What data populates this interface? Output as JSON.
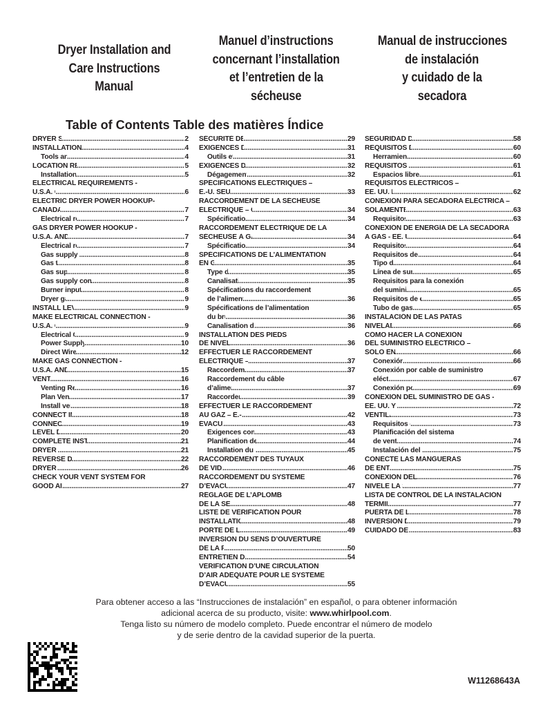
{
  "titles": {
    "en": [
      "Dryer Installation and",
      "Care Instructions",
      "Manual"
    ],
    "fr": [
      "Manuel d’instructions",
      "concernant l’installation",
      "et l’entretien de la",
      "sécheuse"
    ],
    "es": [
      "Manual de instrucciones",
      "de instalación",
      "y cuidado de la",
      "secadora"
    ]
  },
  "toc_title": "Table of Contents Table des matières Índice",
  "columns": [
    [
      {
        "t": "DRYER SAFETY",
        "p": "2"
      },
      {
        "t": "INSTALLATION REQUIREMENTS",
        "p": "4"
      },
      {
        "t": "Tools and parts",
        "p": "4",
        "sub": true
      },
      {
        "t": "LOCATION REQUIREMENTS",
        "p": "5"
      },
      {
        "t": "Installation clearances",
        "p": "5",
        "sub": true
      },
      {
        "t": "ELECTRICAL REQUIREMENTS -"
      },
      {
        "t": "U.S.A. ONLY",
        "p": "6"
      },
      {
        "t": "ELECTRIC DRYER POWER HOOKUP-"
      },
      {
        "t": "CANADA ONLY",
        "p": "7"
      },
      {
        "t": "Electrical requirements",
        "p": "7",
        "sub": true
      },
      {
        "t": "GAS DRYER POWER HOOKUP -"
      },
      {
        "t": "U.S.A. AND CANADA",
        "p": "7"
      },
      {
        "t": "Electrical requirements",
        "p": "7",
        "sub": true
      },
      {
        "t": "Gas supply requirements",
        "p": "8",
        "sub": true
      },
      {
        "t": "Gas type",
        "p": "8",
        "sub": true
      },
      {
        "t": "Gas supply line",
        "p": "8",
        "sub": true
      },
      {
        "t": "Gas supply connection requirements",
        "p": "8",
        "sub": true
      },
      {
        "t": "Burner input requirements",
        "p": "8",
        "sub": true
      },
      {
        "t": "Dryer gas pipe",
        "p": "9",
        "sub": true
      },
      {
        "t": "INSTALL LEVELING LEGS",
        "p": "9"
      },
      {
        "t": "MAKE ELECTRICAL CONNECTION -"
      },
      {
        "t": "U.S.A. ONLY",
        "p": "9"
      },
      {
        "t": "Electrical Connection",
        "p": "9",
        "sub": true
      },
      {
        "t": "Power Supply Cord Connection",
        "p": "10",
        "sub": true
      },
      {
        "t": "Direct Wire Connection",
        "p": "12",
        "sub": true
      },
      {
        "t": "MAKE GAS CONNECTION -"
      },
      {
        "t": "U.S.A. AND CANADA",
        "p": "15"
      },
      {
        "t": "VENTING",
        "p": "16"
      },
      {
        "t": "Venting Requirements",
        "p": "16",
        "sub": true
      },
      {
        "t": "Plan Vent System",
        "p": "17",
        "sub": true
      },
      {
        "t": "Install vent system",
        "p": "18",
        "sub": true
      },
      {
        "t": "CONNECT INLET HOSES",
        "p": "18"
      },
      {
        "t": "CONNECT VENT",
        "p": "19"
      },
      {
        "t": "LEVEL DRYER",
        "p": "20"
      },
      {
        "t": "COMPLETE INSTALLATION CHECKLIST",
        "p": "21"
      },
      {
        "t": "DRYER DOOR",
        "p": "21"
      },
      {
        "t": "REVERSE DOOR SWING",
        "p": "22"
      },
      {
        "t": "DRYER CARE",
        "p": "26"
      },
      {
        "t": "CHECK YOUR VENT SYSTEM FOR"
      },
      {
        "t": "GOOD AIR FLOW",
        "p": "27"
      }
    ],
    [
      {
        "t": "SÉCURITÉ DE LA SÉCHEUSE",
        "p": "29"
      },
      {
        "t": "EXIGENCES D’INSTALLATION",
        "p": "31"
      },
      {
        "t": "Outils et pièces",
        "p": "31",
        "sub": true
      },
      {
        "t": "EXIGENCES D’EMPLACEMENT",
        "p": "32"
      },
      {
        "t": "Dégagements d’installation",
        "p": "32",
        "sub": true
      },
      {
        "t": "SPÉCIFICATIONS ÉLECTRIQUES –"
      },
      {
        "t": "É.-U. SEULEMENT",
        "p": "33"
      },
      {
        "t": "RACCORDEMENT DE LA SÉCHEUSE"
      },
      {
        "t": "ÉLECTRIQUE – CANADA SEULEMENT",
        "p": "34"
      },
      {
        "t": "Spécifications électriques",
        "p": "34",
        "sub": true
      },
      {
        "t": "RACCORDEMENT ÉLECTRIQUE DE LA"
      },
      {
        "t": "SÉCHEUSE À GAZ – É.-U. ET CANADA",
        "p": "34"
      },
      {
        "t": "Spécifications électriques",
        "p": "34",
        "sub": true
      },
      {
        "t": "SPÉCIFICATIONS DE L’ALIMENTATION"
      },
      {
        "t": "EN GAZ",
        "p": "35"
      },
      {
        "t": "Type de gaz",
        "p": "35",
        "sub": true
      },
      {
        "t": "Canalisation de gaz",
        "p": "35",
        "sub": true
      },
      {
        "t": "Spécifications du raccordement",
        "sub": true
      },
      {
        "t": "de l’alimentation en gaz",
        "p": "36",
        "sub": true
      },
      {
        "t": "Spécifications de l’alimentation",
        "sub": true
      },
      {
        "t": "du brûleur",
        "p": "36",
        "sub": true
      },
      {
        "t": "Canalisation de gaz de la sécheuse",
        "p": "36",
        "sub": true
      },
      {
        "t": "INSTALLATION DES PIEDS"
      },
      {
        "t": "DE NIVELLEMENT",
        "p": "36"
      },
      {
        "t": "EFFECTUER LE RACCORDEMENT"
      },
      {
        "t": "ÉLECTRIQUE – É.-U. SEULEMENT",
        "p": "37"
      },
      {
        "t": "Raccordement électrique",
        "p": "37",
        "sub": true
      },
      {
        "t": "Raccordement du câble",
        "sub": true
      },
      {
        "t": "d’alimentation",
        "p": "37",
        "sub": true
      },
      {
        "t": "Raccordement direct",
        "p": "39",
        "sub": true
      },
      {
        "t": "EFFECTUER LE RACCORDEMENT"
      },
      {
        "t": "AU GAZ – É.-U. ET CANADA",
        "p": "42"
      },
      {
        "t": "ÉVACUATION",
        "p": "43"
      },
      {
        "t": "Exigences concernant l’évacuation",
        "p": "43",
        "sub": true
      },
      {
        "t": "Planification des circuits de conduits",
        "p": "44",
        "sub": true
      },
      {
        "t": "Installation du système d’évacuation",
        "p": "45",
        "sub": true
      },
      {
        "t": "RACCORDEMENT DES TUYAUX"
      },
      {
        "t": "DE VIDANGE",
        "p": "46"
      },
      {
        "t": "RACCORDEMENT DU SYSTÈME"
      },
      {
        "t": "D’ÉVACUATION",
        "p": "47"
      },
      {
        "t": "RÉGLAGE DE L’APLOMB"
      },
      {
        "t": "DE LA SÉCHEUSE",
        "p": "48"
      },
      {
        "t": "LISTE DE VÉRIFICATION POUR"
      },
      {
        "t": "INSTALLATION TERMINÉE",
        "p": "48"
      },
      {
        "t": "PORTE DE LA SÉCHEUSE",
        "p": "49"
      },
      {
        "t": "INVERSION DU SENS D’OUVERTURE"
      },
      {
        "t": "DE LA PORTE",
        "p": "50"
      },
      {
        "t": "ENTRETIEN DE LA SÉCHEUSE",
        "p": "54"
      },
      {
        "t": "VÉRIFICATION D’UNE CIRCULATION"
      },
      {
        "t": "D’AIR ADÉQUATE POUR LE SYSTÈME"
      },
      {
        "t": "D’ÉVACUATION",
        "p": "55"
      }
    ],
    [
      {
        "t": "SEGURIDAD DE LA SECADORA",
        "p": "58"
      },
      {
        "t": "REQUISITOS DE INSTALACIÓN",
        "p": "60"
      },
      {
        "t": "Herramientas y piezas",
        "p": "60",
        "sub": true
      },
      {
        "t": "REQUISITOS DE UBICACIÓN",
        "p": "61"
      },
      {
        "t": "Espacios libres para la instalación",
        "p": "61",
        "sub": true
      },
      {
        "t": "REQUISITOS ELÉCTRICOS –"
      },
      {
        "t": "EE. UU. EE. UU.",
        "p": "62"
      },
      {
        "t": "CONEXIÓN PARA SECADORA ELÉCTRICA –"
      },
      {
        "t": "SOLAMENTE EN CANADÁ",
        "p": "63"
      },
      {
        "t": "Requisitos eléctricos",
        "p": "63",
        "sub": true
      },
      {
        "t": "CONEXIÓN DE ENERGÍA DE LA SECADORA"
      },
      {
        "t": "A GAS - EE. UU. Y CANADÁ",
        "p": "64"
      },
      {
        "t": "Requisitos eléctricos",
        "p": "64",
        "sub": true
      },
      {
        "t": "Requisitos del suministro de gas",
        "p": "64",
        "sub": true
      },
      {
        "t": "Tipo de gas",
        "p": "64",
        "sub": true
      },
      {
        "t": "Línea de suministro de gas",
        "p": "65",
        "sub": true
      },
      {
        "t": "Requisitos para la conexión",
        "sub": true
      },
      {
        "t": "del suministro de gas",
        "p": "65",
        "sub": true
      },
      {
        "t": "Requisitos de entrada del quemador",
        "p": "65",
        "sub": true
      },
      {
        "t": "Tubo de gas de la secadora",
        "p": "65",
        "sub": true
      },
      {
        "t": "INSTALACIÓN DE LAS PATAS"
      },
      {
        "t": "NIVELADORAS",
        "p": "66"
      },
      {
        "t": "CÓMO HACER LA CONEXIÓN"
      },
      {
        "t": "DEL SUMINISTRO ELÉCTRICO –"
      },
      {
        "t": "SOLO EN EE. UU.",
        "p": "66"
      },
      {
        "t": "Conexión eléctrica",
        "p": "66",
        "sub": true
      },
      {
        "t": "Conexión por cable de suministro",
        "sub": true
      },
      {
        "t": "eléctrico",
        "p": "67",
        "sub": true
      },
      {
        "t": "Conexión por cable directo",
        "p": "69",
        "sub": true
      },
      {
        "t": "CONEXIÓN DEL SUMINISTRO DE GAS -"
      },
      {
        "t": "EE. UU. Y CANADÁ",
        "p": "72"
      },
      {
        "t": "VENTILACIÓN",
        "p": "73"
      },
      {
        "t": "Requisitos de ventilación",
        "p": "73",
        "sub": true
      },
      {
        "t": "Planificación del sistema",
        "sub": true
      },
      {
        "t": "de ventilación",
        "p": "74",
        "sub": true
      },
      {
        "t": "Instalación del sistema de ventilación",
        "p": "75",
        "sub": true
      },
      {
        "t": "CONECTE LAS MANGUERAS"
      },
      {
        "t": "DE ENTRADA",
        "p": "75"
      },
      {
        "t": "CONEXIÓN DEL DUCTO DE ESCAPE",
        "p": "76"
      },
      {
        "t": "NIVELE LA SECADORA",
        "p": "77"
      },
      {
        "t": "LISTA DE CONTROL DE LA INSTALACIÓN"
      },
      {
        "t": "TERMINADA",
        "p": "77"
      },
      {
        "t": "PUERTA DE LA SECADORA",
        "p": "78"
      },
      {
        "t": "INVERSIÓN DE LA PUERTA",
        "p": "79"
      },
      {
        "t": "CUIDADO DE LA SECADORA",
        "p": "83"
      }
    ]
  ],
  "footer": {
    "line1": "Para obtener acceso a las “Instrucciones de instalación” en español, o para obtener información",
    "line2_pre": "adicional acerca de su producto, visite: ",
    "line2_link": "www.whirlpool.com",
    "line2_post": ".",
    "line3": "Tenga listo su número de modelo completo. Puede encontrar el número de modelo",
    "line4": "y de serie dentro de la cavidad superior de la puerta."
  },
  "barcode": {
    "type": "data-matrix-code",
    "color": "#000000"
  },
  "model_number": "W11268643A"
}
